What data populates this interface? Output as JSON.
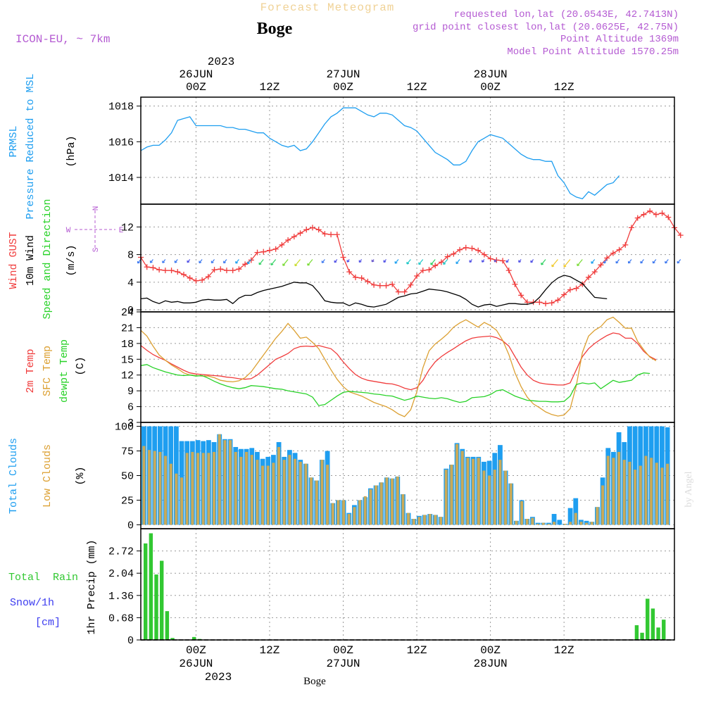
{
  "header": {
    "title": "Forecast Meteogram",
    "location": "Boge",
    "model": "ICON-EU, ~ 7km",
    "requested": "requested lon,lat (20.0543E, 42.7413N)",
    "grid_point": "grid point closest lon,lat (20.0625E, 42.75N)",
    "point_altitude": "Point Altitude 1369m",
    "model_altitude": "Model Point Altitude 1570.25m",
    "footer_location": "Boge",
    "watermark": "by Angel"
  },
  "time_axis": {
    "year": "2023",
    "hour_labels": [
      "00Z",
      "12Z",
      "00Z",
      "12Z",
      "00Z",
      "12Z"
    ],
    "date_labels": [
      "26JUN",
      "27JUN",
      "28JUN"
    ]
  },
  "colors": {
    "pressure": "#1e9ef0",
    "gust": "#f03c3c",
    "wind": "#000000",
    "temp2m": "#f03c3c",
    "sfc": "#dca032",
    "dewpt": "#28d228",
    "total_clouds": "#1e9ef0",
    "low_clouds": "#c8aa5a",
    "rain": "#32c832",
    "snow": "#3c3cf0",
    "purple": "#b45ad2"
  },
  "panels": {
    "pressure": {
      "label1": "PRMSL",
      "label2": "Pressure Reduced to MSL",
      "unit": "(hPa)"
    },
    "wind": {
      "label1": "Wind GUST",
      "label2": "10m Wind",
      "label3": "Speed and Direction",
      "unit": "(m/s)",
      "compass_n": "N",
      "compass_s": "S",
      "compass_w": "W",
      "compass_e": "E"
    },
    "temp": {
      "label1": "2m Temp",
      "label2": "SFC Temp",
      "label3": "dewpt Temp",
      "unit": "(C)"
    },
    "clouds": {
      "label1": "Total Clouds",
      "label2": "Low Clouds",
      "unit": "(%)"
    },
    "precip": {
      "label1": "Total  Rain",
      "label2": "Snow/1h",
      "label3": "[cm]",
      "unit": "1hr Precip (mm)"
    }
  },
  "chart_data": [
    {
      "type": "line",
      "title": "PRMSL",
      "ylabel": "(hPa)",
      "ylim": [
        1012.5,
        1018.5
      ],
      "yticks": [
        1014,
        1016,
        1018
      ],
      "x_hours_start": -9,
      "x_step_hours": 1,
      "series": [
        {
          "name": "PRMSL",
          "values": [
            1015.5,
            1015.7,
            1015.8,
            1015.8,
            1016.1,
            1016.5,
            1017.2,
            1017.3,
            1017.4,
            1016.9,
            1016.9,
            1016.9,
            1016.9,
            1016.9,
            1016.8,
            1016.8,
            1016.7,
            1016.7,
            1016.6,
            1016.5,
            1016.5,
            1016.2,
            1016.0,
            1015.8,
            1015.7,
            1015.8,
            1015.5,
            1015.6,
            1016.0,
            1016.5,
            1017.0,
            1017.4,
            1017.6,
            1017.9,
            1017.9,
            1017.9,
            1017.7,
            1017.5,
            1017.4,
            1017.6,
            1017.6,
            1017.5,
            1017.2,
            1016.9,
            1016.8,
            1016.6,
            1016.2,
            1015.8,
            1015.4,
            1015.2,
            1015.0,
            1014.7,
            1014.7,
            1014.9,
            1015.5,
            1016.0,
            1016.2,
            1016.4,
            1016.3,
            1016.2,
            1015.9,
            1015.6,
            1015.3,
            1015.1,
            1015.0,
            1015.0,
            1014.9,
            1014.9,
            1014.1,
            1013.7,
            1013.1,
            1012.9,
            1012.8,
            1013.2,
            1013.0,
            1013.3,
            1013.6,
            1013.7,
            1014.1
          ]
        }
      ]
    },
    {
      "type": "line",
      "title": "Wind GUST / 10m Wind",
      "ylabel": "(m/s)",
      "ylim": [
        -0.3,
        15.3
      ],
      "yticks": [
        0,
        4,
        8,
        12
      ],
      "x_hours_start": -9,
      "x_step_hours": 1,
      "series": [
        {
          "name": "Wind GUST",
          "values": [
            7.6,
            6.2,
            6.1,
            5.8,
            5.7,
            5.7,
            5.5,
            5.1,
            4.6,
            4.2,
            4.3,
            4.8,
            5.8,
            5.9,
            5.7,
            5.7,
            5.9,
            6.6,
            7.2,
            8.3,
            8.4,
            8.6,
            8.8,
            9.4,
            10.1,
            10.6,
            11.1,
            11.6,
            11.9,
            11.6,
            11.0,
            10.9,
            10.9,
            7.6,
            5.5,
            4.7,
            4.6,
            4.1,
            3.6,
            3.5,
            3.5,
            3.7,
            2.6,
            2.6,
            3.6,
            4.9,
            5.7,
            5.8,
            6.4,
            6.9,
            7.7,
            8.1,
            8.7,
            9.0,
            8.9,
            8.6,
            8.0,
            7.4,
            7.2,
            7.1,
            5.7,
            3.7,
            2.1,
            1.1,
            1.1,
            1.1,
            0.9,
            1.0,
            1.4,
            2.2,
            2.9,
            3.1,
            3.7,
            4.7,
            5.5,
            6.5,
            7.5,
            8.2,
            8.7,
            9.4,
            11.9,
            13.3,
            13.8,
            14.3,
            13.8,
            14.0,
            13.4,
            11.9,
            10.8
          ]
        },
        {
          "name": "10m Wind",
          "values": [
            1.6,
            1.7,
            1.2,
            0.9,
            1.3,
            1.1,
            1.2,
            1.0,
            1.0,
            1.1,
            1.4,
            1.5,
            1.4,
            1.4,
            1.5,
            0.9,
            1.7,
            2.1,
            2.1,
            2.5,
            2.8,
            3.0,
            3.2,
            3.4,
            3.7,
            4.0,
            3.9,
            3.9,
            3.5,
            2.5,
            1.3,
            1.1,
            1.0,
            1.0,
            0.6,
            1.0,
            0.8,
            0.5,
            0.4,
            0.6,
            0.8,
            1.3,
            1.8,
            2.0,
            2.3,
            2.4,
            2.7,
            3.0,
            2.9,
            2.8,
            2.6,
            2.3,
            2.0,
            1.5,
            0.8,
            0.4,
            0.7,
            0.8,
            0.5,
            0.7,
            0.9,
            0.9,
            0.8,
            0.8,
            1.0,
            1.8,
            2.9,
            3.9,
            4.6,
            5.0,
            4.8,
            4.3,
            3.8,
            2.8,
            1.8,
            1.7,
            1.6
          ]
        }
      ]
    },
    {
      "type": "line",
      "title": "Temperatures",
      "ylabel": "(C)",
      "ylim": [
        3,
        24
      ],
      "yticks": [
        3,
        6,
        9,
        12,
        15,
        18,
        21,
        24
      ],
      "x_hours_start": -9,
      "x_step_hours": 1,
      "series": [
        {
          "name": "2m Temp",
          "values": [
            17.6,
            16.7,
            15.9,
            15.3,
            14.8,
            14.1,
            13.5,
            12.9,
            12.4,
            12.2,
            12.1,
            12.0,
            11.9,
            11.8,
            11.6,
            11.5,
            11.3,
            11.2,
            11.3,
            12.0,
            13.0,
            14.0,
            15.0,
            15.5,
            16.1,
            17.0,
            17.4,
            17.5,
            17.4,
            17.6,
            17.3,
            17.0,
            16.0,
            14.5,
            13.2,
            12.1,
            11.4,
            11.0,
            10.8,
            10.6,
            10.4,
            10.3,
            10.0,
            9.5,
            9.2,
            9.6,
            11.0,
            13.0,
            14.5,
            15.5,
            16.3,
            17.0,
            17.8,
            18.5,
            19.0,
            19.2,
            19.3,
            19.4,
            19.1,
            18.5,
            17.5,
            15.5,
            13.5,
            12.0,
            11.0,
            10.5,
            10.3,
            10.2,
            10.1,
            10.1,
            10.5,
            13.0,
            15.5,
            17.0,
            18.0,
            18.8,
            19.5,
            20.0,
            19.8,
            19.0,
            19.0,
            18.0,
            16.5,
            15.5,
            14.9
          ]
        },
        {
          "name": "SFC Temp",
          "values": [
            20.5,
            19.4,
            17.5,
            15.8,
            14.8,
            13.9,
            13.2,
            12.4,
            12.0,
            11.9,
            11.8,
            11.8,
            11.5,
            11.0,
            10.8,
            10.7,
            10.9,
            11.5,
            12.6,
            14.2,
            15.8,
            17.4,
            19.0,
            20.3,
            21.8,
            20.5,
            19.0,
            19.2,
            18.2,
            17.0,
            15.0,
            13.0,
            11.2,
            9.8,
            8.8,
            8.4,
            8.0,
            7.4,
            6.8,
            6.4,
            6.0,
            5.4,
            4.6,
            4.1,
            5.4,
            8.8,
            13.4,
            16.6,
            17.9,
            18.8,
            19.8,
            21.1,
            21.9,
            22.5,
            21.8,
            21.1,
            22.0,
            21.4,
            20.5,
            18.6,
            15.9,
            12.4,
            9.8,
            7.8,
            6.5,
            5.8,
            5.0,
            4.5,
            4.2,
            4.4,
            5.6,
            10.0,
            16.3,
            19.4,
            20.5,
            21.2,
            22.5,
            23.0,
            22.0,
            20.9,
            20.9,
            18.4,
            16.8,
            15.4,
            14.7
          ]
        },
        {
          "name": "dewpt Temp",
          "values": [
            13.8,
            14.0,
            13.4,
            13.0,
            12.6,
            12.3,
            12.0,
            11.9,
            12.0,
            11.8,
            11.9,
            11.4,
            10.8,
            10.3,
            9.9,
            9.6,
            9.4,
            9.6,
            10.0,
            9.9,
            9.8,
            9.6,
            9.4,
            9.3,
            9.0,
            8.8,
            8.6,
            8.4,
            7.8,
            6.2,
            6.4,
            7.2,
            8.0,
            8.7,
            8.9,
            8.8,
            8.7,
            8.6,
            8.4,
            8.3,
            8.1,
            8.0,
            7.6,
            7.2,
            7.5,
            8.0,
            7.8,
            7.6,
            7.5,
            7.7,
            7.5,
            7.1,
            6.8,
            7.0,
            7.7,
            7.8,
            7.9,
            8.3,
            9.0,
            9.2,
            8.6,
            8.0,
            7.6,
            7.2,
            7.1,
            7.0,
            7.0,
            6.9,
            6.9,
            7.0,
            8.0,
            10.2,
            10.5,
            10.3,
            10.5,
            9.4,
            10.2,
            11.0,
            10.6,
            10.8,
            11.0,
            12.0,
            12.4,
            12.3
          ]
        }
      ]
    },
    {
      "type": "bar",
      "title": "Clouds",
      "ylabel": "(%)",
      "ylim": [
        -4,
        104
      ],
      "yticks": [
        0,
        25,
        50,
        75,
        100
      ],
      "x_hours_start": -9,
      "x_step_hours": 1,
      "series": [
        {
          "name": "Total Clouds",
          "values": [
            100,
            100,
            100,
            100,
            100,
            100,
            100,
            85,
            85,
            85,
            86,
            85,
            86,
            84,
            92,
            87,
            87,
            79,
            77,
            77,
            78,
            74,
            67,
            69,
            71,
            84,
            69,
            76,
            73,
            66,
            62,
            48,
            45,
            66,
            75,
            22,
            25,
            25,
            12,
            20,
            25,
            28,
            37,
            40,
            43,
            48,
            47,
            49,
            31,
            12,
            6,
            9,
            10,
            11,
            10,
            8,
            57,
            61,
            83,
            77,
            69,
            69,
            69,
            64,
            65,
            73,
            81,
            55,
            42,
            4,
            25,
            6,
            8,
            2,
            2,
            2,
            11,
            5,
            1,
            17,
            27,
            5,
            4,
            3,
            18,
            48,
            78,
            74,
            94,
            84,
            100,
            100,
            100,
            100,
            100,
            100,
            100,
            99,
            100
          ]
        },
        {
          "name": "Low Clouds",
          "values": [
            80,
            76,
            75,
            74,
            70,
            62,
            52,
            48,
            73,
            74,
            73,
            73,
            73,
            74,
            92,
            86,
            86,
            74,
            69,
            74,
            71,
            66,
            60,
            60,
            63,
            79,
            66,
            71,
            67,
            64,
            62,
            48,
            45,
            66,
            61,
            22,
            25,
            25,
            11,
            18,
            25,
            29,
            36,
            40,
            43,
            48,
            47,
            49,
            31,
            12,
            6,
            8,
            10,
            11,
            10,
            8,
            56,
            61,
            82,
            75,
            68,
            67,
            68,
            55,
            50,
            56,
            66,
            55,
            42,
            4,
            24,
            6,
            7,
            1,
            2,
            1,
            3,
            0,
            1,
            3,
            12,
            3,
            2,
            3,
            18,
            40,
            70,
            68,
            74,
            66,
            64,
            56,
            60,
            70,
            68,
            63,
            58,
            62,
            66
          ]
        }
      ]
    },
    {
      "type": "bar",
      "title": "Precipitation",
      "ylabel": "1hr Precip (mm)",
      "ylim": [
        0,
        3.4
      ],
      "yticks": [
        0,
        0.68,
        1.36,
        2.04,
        2.72
      ],
      "yticklabels": [
        "0",
        "0.68",
        "1.36",
        "2.04",
        "2.72"
      ],
      "x_hours_start": -9,
      "x_step_hours": 1,
      "series": [
        {
          "name": "Total Rain",
          "values": [
            2.95,
            3.26,
            2.0,
            2.42,
            0.88,
            0.06,
            0,
            0,
            0,
            0.09,
            0.03,
            0,
            0,
            0,
            0,
            0,
            0,
            0,
            0,
            0,
            0,
            0,
            0,
            0,
            0,
            0,
            0,
            0,
            0,
            0,
            0,
            0,
            0,
            0,
            0,
            0,
            0,
            0,
            0,
            0,
            0,
            0,
            0,
            0,
            0,
            0,
            0,
            0,
            0,
            0,
            0,
            0,
            0,
            0,
            0,
            0,
            0,
            0,
            0,
            0,
            0,
            0,
            0,
            0,
            0,
            0,
            0,
            0,
            0,
            0,
            0,
            0,
            0,
            0,
            0,
            0,
            0,
            0,
            0,
            0,
            0,
            0,
            0,
            0,
            0,
            0,
            0,
            0,
            0,
            0,
            0,
            0.45,
            0.22,
            1.26,
            0.96,
            0.38,
            0.62
          ]
        },
        {
          "name": "Snow/1h",
          "values": []
        }
      ]
    }
  ]
}
